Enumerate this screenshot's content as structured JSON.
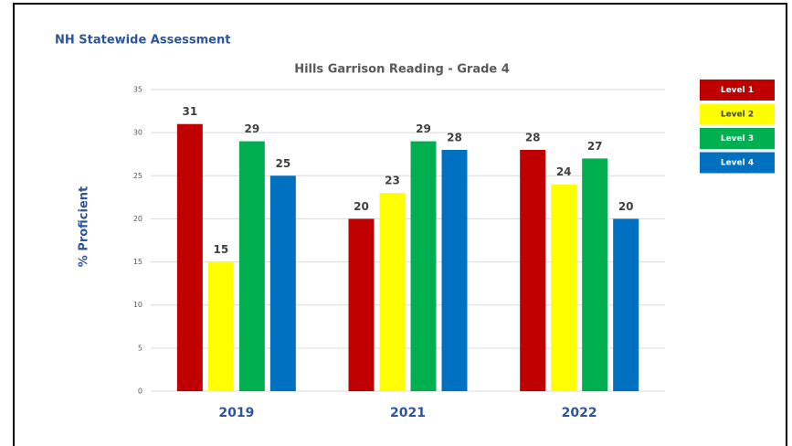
{
  "header": "NH Statewide Assessment",
  "chart_data": {
    "type": "bar",
    "title": "Hills Garrison Reading - Grade 4",
    "y_label": "% Proficient",
    "categories": [
      "2019",
      "2021",
      "2022"
    ],
    "series": [
      {
        "name": "Level 1",
        "color": "#c00000",
        "values": [
          31,
          20,
          28
        ]
      },
      {
        "name": "Level 2",
        "color": "#ffff00",
        "values": [
          15,
          23,
          24
        ]
      },
      {
        "name": "Level 3",
        "color": "#00b050",
        "values": [
          29,
          29,
          27
        ]
      },
      {
        "name": "Level 4",
        "color": "#0070c0",
        "values": [
          25,
          28,
          20
        ]
      }
    ],
    "ylim": [
      0,
      35
    ],
    "yticks": [
      0,
      5,
      10,
      15,
      20,
      25,
      30,
      35
    ],
    "grid": true,
    "legend": "right",
    "data_labels": true
  }
}
